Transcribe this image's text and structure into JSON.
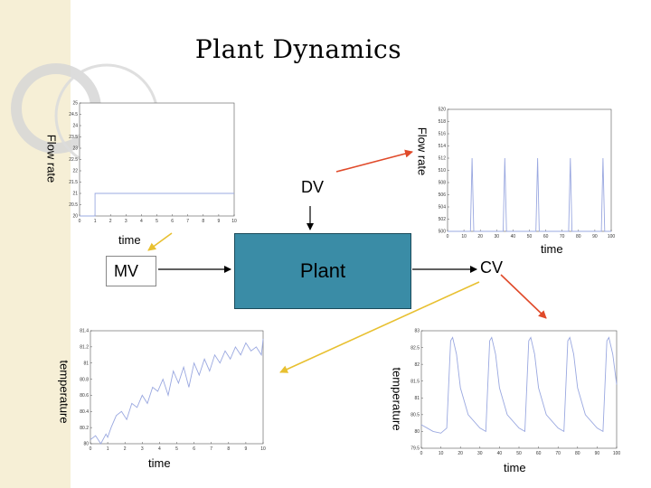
{
  "title": "Plant Dynamics",
  "labels": {
    "dv": "DV",
    "mv": "MV",
    "plant": "Plant",
    "cv": "CV",
    "time": "time",
    "flow_rate": "Flow rate",
    "temperature": "temperature"
  },
  "colors": {
    "plant_box": "#3a8ca6",
    "red_arrow": "#e04a2a",
    "yellow_arrow": "#e8c030",
    "plot_line": "#9aa8e0"
  },
  "chart_data": [
    {
      "id": "mv-flow",
      "type": "line",
      "xlim": [
        0,
        10
      ],
      "ylim": [
        20,
        25
      ],
      "x_ticks": [
        "0",
        "1",
        "2",
        "3",
        "4",
        "5",
        "6",
        "7",
        "8",
        "9",
        "10"
      ],
      "y_ticks": [
        "20",
        "20.5",
        "21",
        "21.5",
        "22",
        "22.5",
        "23",
        "23.5",
        "24",
        "24.5",
        "25"
      ],
      "series": [
        {
          "x": [
            0,
            1,
            1,
            10
          ],
          "y": [
            20,
            20,
            21,
            21
          ]
        }
      ]
    },
    {
      "id": "dv-flow",
      "type": "line",
      "xlim": [
        0,
        100
      ],
      "ylim": [
        500,
        520
      ],
      "x_ticks": [
        "0",
        "10",
        "20",
        "30",
        "40",
        "50",
        "60",
        "70",
        "80",
        "90",
        "100"
      ],
      "y_ticks": [
        "500",
        "502",
        "504",
        "506",
        "508",
        "510",
        "512",
        "514",
        "516",
        "518",
        "520"
      ],
      "series": [
        {
          "x": [
            0,
            14,
            15,
            16,
            34,
            35,
            36,
            54,
            55,
            56,
            74,
            75,
            76,
            94,
            95,
            96,
            100
          ],
          "y": [
            500,
            500,
            512,
            500,
            500,
            512,
            500,
            500,
            512,
            500,
            500,
            512,
            500,
            500,
            512,
            500,
            500
          ]
        }
      ]
    },
    {
      "id": "mv-temperature",
      "type": "line",
      "xlim": [
        0,
        10
      ],
      "ylim": [
        80,
        81.4
      ],
      "x_ticks": [
        "0",
        "1",
        "2",
        "3",
        "4",
        "5",
        "6",
        "7",
        "8",
        "9",
        "10"
      ],
      "y_ticks": [
        "80",
        "80.2",
        "80.4",
        "80.6",
        "80.8",
        "81",
        "81.2",
        "81.4"
      ],
      "series": [
        {
          "x": [
            0,
            0.3,
            0.6,
            0.9,
            1,
            1.2,
            1.5,
            1.8,
            2.1,
            2.4,
            2.7,
            3,
            3.3,
            3.6,
            3.9,
            4.2,
            4.5,
            4.8,
            5.1,
            5.4,
            5.7,
            6,
            6.3,
            6.6,
            6.9,
            7.2,
            7.5,
            7.8,
            8.1,
            8.4,
            8.7,
            9,
            9.3,
            9.6,
            9.9,
            10
          ],
          "y": [
            80.05,
            80.1,
            80.0,
            80.12,
            80.08,
            80.2,
            80.35,
            80.4,
            80.3,
            80.5,
            80.45,
            80.6,
            80.5,
            80.7,
            80.65,
            80.8,
            80.6,
            80.9,
            80.75,
            80.95,
            80.7,
            81.0,
            80.85,
            81.05,
            80.9,
            81.1,
            81.0,
            81.15,
            81.05,
            81.2,
            81.1,
            81.25,
            81.15,
            81.2,
            81.1,
            81.3
          ]
        }
      ]
    },
    {
      "id": "cv-temperature",
      "type": "line",
      "xlim": [
        0,
        100
      ],
      "ylim": [
        79.5,
        83
      ],
      "x_ticks": [
        "0",
        "10",
        "20",
        "30",
        "40",
        "50",
        "60",
        "70",
        "80",
        "90",
        "100"
      ],
      "y_ticks": [
        "79.5",
        "80",
        "80.5",
        "81",
        "81.5",
        "82",
        "82.5",
        "83"
      ],
      "series": [
        {
          "x": [
            0,
            3,
            6,
            10,
            13,
            15,
            16,
            18,
            20,
            24,
            30,
            33,
            35,
            36,
            38,
            40,
            44,
            50,
            53,
            55,
            56,
            58,
            60,
            64,
            70,
            73,
            75,
            76,
            78,
            80,
            84,
            90,
            93,
            95,
            96,
            98,
            100
          ],
          "y": [
            80.2,
            80.1,
            80.0,
            79.95,
            80.1,
            82.7,
            82.8,
            82.3,
            81.3,
            80.5,
            80.1,
            80.0,
            82.7,
            82.8,
            82.3,
            81.3,
            80.5,
            80.1,
            80.0,
            82.7,
            82.8,
            82.3,
            81.3,
            80.5,
            80.1,
            80.0,
            82.7,
            82.8,
            82.3,
            81.3,
            80.5,
            80.1,
            80.0,
            82.7,
            82.8,
            82.3,
            81.4
          ]
        }
      ]
    }
  ]
}
